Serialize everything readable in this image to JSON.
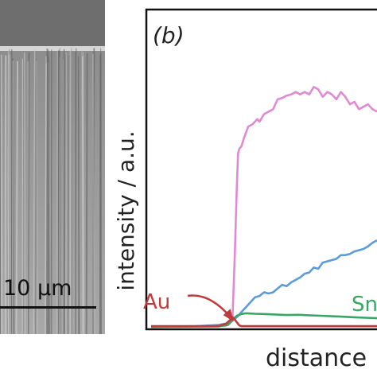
{
  "panel_a": {
    "scale_bar_label": "10 µm"
  },
  "chart_data": {
    "type": "line",
    "panel_label": "(b)",
    "xlabel": "distance",
    "ylabel": "intensity / a.u.",
    "xlim": [
      0,
      100
    ],
    "ylim": [
      0,
      100
    ],
    "grid": false,
    "annotations": [
      {
        "text": "Au",
        "color": "#c0393b",
        "arrow_to": [
          36.5,
          1.5
        ]
      },
      {
        "text": "Sn",
        "color": "#3aa564"
      }
    ],
    "series": [
      {
        "color": "#e08ad4",
        "x": [
          32,
          33,
          34,
          35,
          36,
          37,
          38,
          38.5,
          39,
          40,
          41,
          43,
          45,
          47,
          48,
          50,
          52,
          54,
          56,
          58,
          60,
          62,
          64,
          66,
          68,
          70,
          72,
          74,
          76,
          78,
          80,
          82,
          84,
          86,
          88,
          90,
          92,
          94,
          96,
          98,
          100
        ],
        "y": [
          0.5,
          0.5,
          0.8,
          1.5,
          2.5,
          28,
          58,
          70,
          72,
          73,
          76,
          81,
          82,
          84,
          83,
          86,
          87,
          88,
          92,
          92.5,
          93.5,
          94,
          95,
          94,
          95,
          94,
          97,
          96,
          93,
          95,
          94,
          92,
          95,
          93,
          90,
          91,
          88,
          89,
          90,
          88,
          87
        ]
      },
      {
        "color": "#5b9bd9",
        "x": [
          0,
          20,
          30,
          34,
          36,
          38,
          40,
          42,
          44,
          46,
          48,
          50,
          52,
          54,
          56,
          58,
          60,
          62,
          64,
          66,
          68,
          70,
          72,
          74,
          76,
          78,
          80,
          82,
          84,
          86,
          88,
          90,
          92,
          94,
          96,
          98,
          100
        ],
        "y": [
          0,
          0.3,
          0.8,
          1.5,
          2.5,
          4,
          6,
          8,
          10,
          12,
          12.5,
          14,
          13.5,
          14,
          15.5,
          17,
          16.5,
          18,
          19,
          20,
          21.5,
          22,
          24,
          23.5,
          26,
          26.5,
          27,
          27.5,
          29,
          29,
          29.5,
          30.5,
          31,
          31.5,
          32.5,
          34,
          35
        ]
      },
      {
        "color": "#3aa564",
        "x": [
          0,
          30,
          34,
          36,
          38,
          40,
          42,
          44,
          46,
          50,
          55,
          60,
          65,
          70,
          75,
          80,
          85,
          90,
          95,
          100
        ],
        "y": [
          0,
          0.2,
          0.8,
          3,
          4.5,
          5.2,
          5.5,
          5.4,
          5.3,
          5.2,
          5.0,
          4.8,
          4.9,
          4.7,
          4.5,
          4.3,
          4.1,
          3.9,
          3.7,
          3.5
        ]
      },
      {
        "color": "#c0393b",
        "x": [
          0,
          20,
          30,
          33,
          35,
          36,
          37,
          38,
          39,
          40,
          42,
          50,
          60,
          70,
          80,
          90,
          100
        ],
        "y": [
          0.3,
          0.3,
          0.4,
          1.2,
          2.8,
          4.0,
          3.0,
          1.8,
          0.6,
          0.3,
          0.3,
          0.3,
          0.3,
          0.3,
          0.3,
          0.3,
          0.3
        ]
      }
    ]
  }
}
